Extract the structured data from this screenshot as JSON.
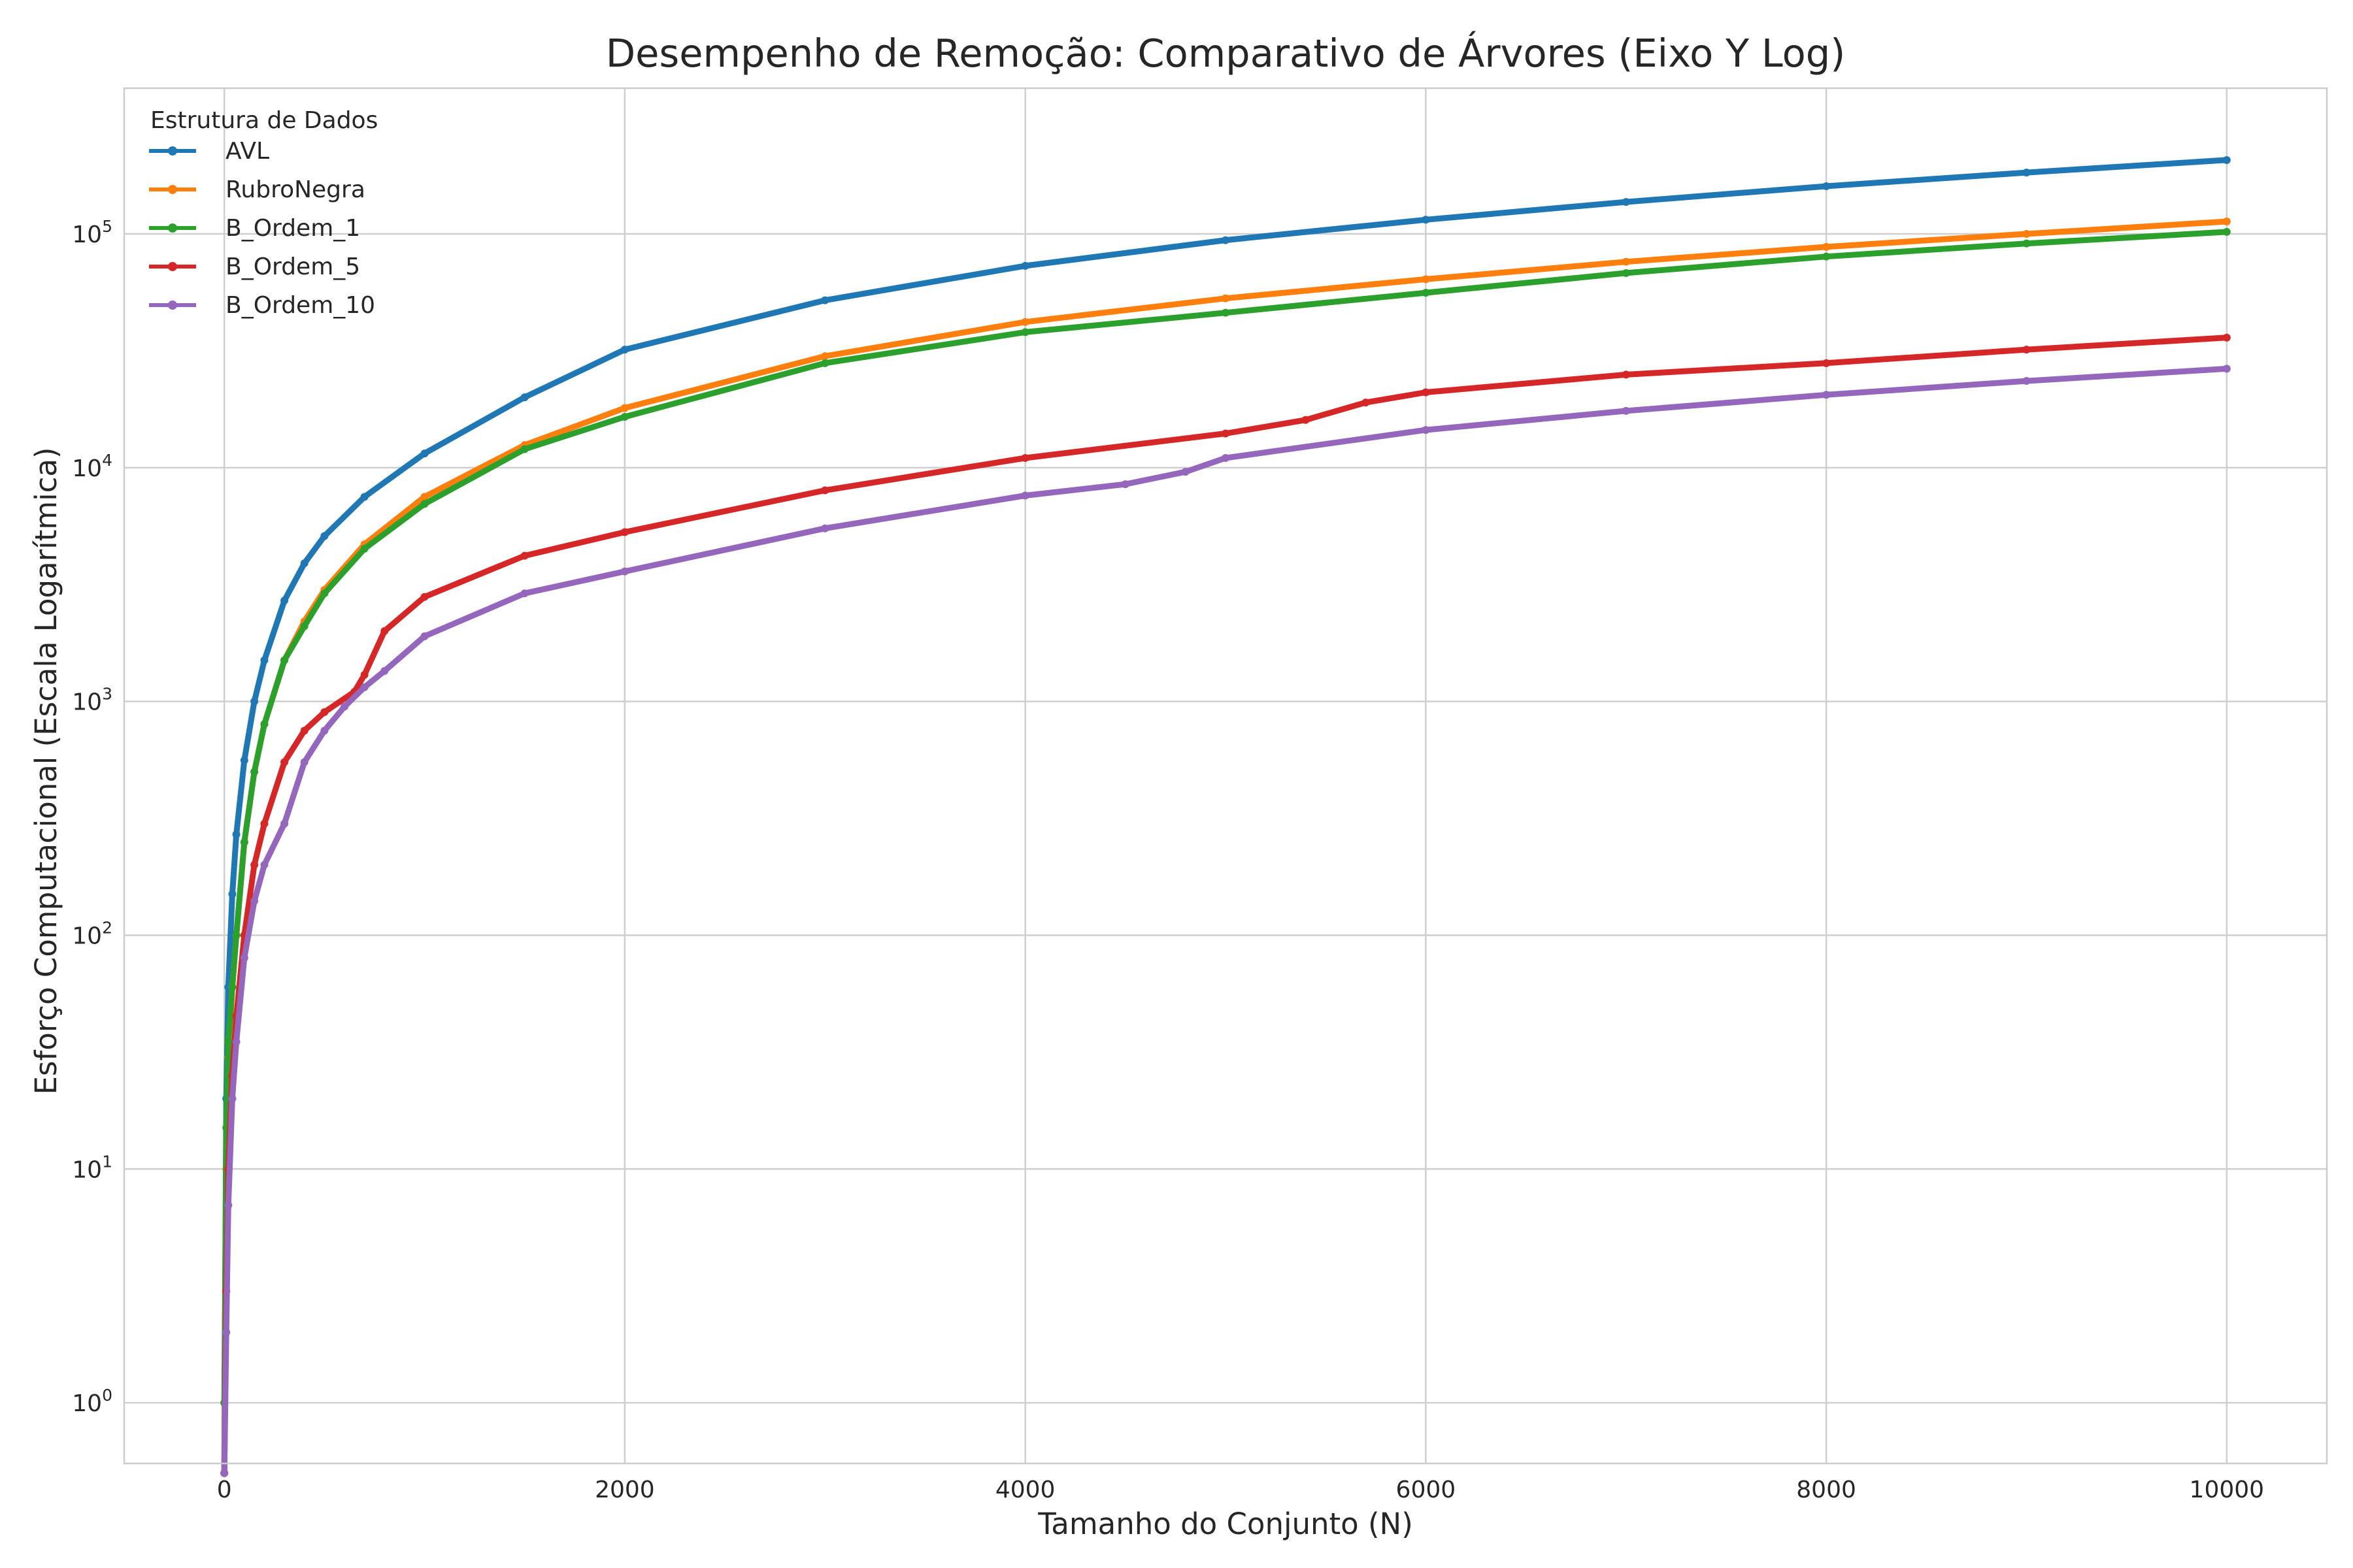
{
  "chart_data": {
    "type": "line",
    "title": "Desempenho de Remoção: Comparativo de Árvores (Eixo Y Log)",
    "xlabel": "Tamanho do Conjunto (N)",
    "ylabel": "Esforço Computacional (Escala Logarítmica)",
    "xlim": [
      -500,
      10500
    ],
    "ylim": [
      0.55,
      420000
    ],
    "yscale": "log",
    "grid": true,
    "x_ticks": [
      0,
      2000,
      4000,
      6000,
      8000,
      10000
    ],
    "x_tick_labels": [
      "0",
      "2000",
      "4000",
      "6000",
      "8000",
      "10000"
    ],
    "y_ticks": [
      1,
      10,
      100,
      1000,
      10000,
      100000
    ],
    "y_tick_labels": [
      {
        "base": "10",
        "exp": "0"
      },
      {
        "base": "10",
        "exp": "1"
      },
      {
        "base": "10",
        "exp": "2"
      },
      {
        "base": "10",
        "exp": "3"
      },
      {
        "base": "10",
        "exp": "4"
      },
      {
        "base": "10",
        "exp": "5"
      }
    ],
    "legend": {
      "title": "Estrutura de Dados",
      "placement": "upper-left"
    },
    "series": [
      {
        "name": "AVL",
        "color": "#1f77b4",
        "x": [
          0,
          10,
          20,
          40,
          60,
          100,
          150,
          200,
          300,
          400,
          500,
          700,
          1000,
          1500,
          2000,
          3000,
          4000,
          5000,
          6000,
          7000,
          8000,
          9000,
          10000
        ],
        "y": [
          0.5,
          20,
          60,
          150,
          270,
          560,
          1000,
          1500,
          2700,
          3900,
          5100,
          7500,
          11500,
          20000,
          32000,
          52000,
          73000,
          94000,
          115000,
          137000,
          160000,
          183000,
          207000
        ]
      },
      {
        "name": "RubroNegra",
        "color": "#ff7f0e",
        "x": [
          0,
          10,
          20,
          40,
          60,
          100,
          150,
          200,
          300,
          400,
          500,
          700,
          1000,
          1500,
          2000,
          3000,
          4000,
          5000,
          6000,
          7000,
          8000,
          9000,
          10000
        ],
        "y": [
          0.5,
          10,
          30,
          60,
          100,
          250,
          500,
          800,
          1500,
          2200,
          3000,
          4700,
          7500,
          12500,
          18000,
          30000,
          42000,
          53000,
          64000,
          76000,
          88000,
          100000,
          113000
        ]
      },
      {
        "name": "B_Ordem_1",
        "color": "#2ca02c",
        "x": [
          0,
          10,
          20,
          40,
          60,
          100,
          150,
          200,
          300,
          400,
          500,
          700,
          1000,
          1500,
          2000,
          3000,
          4000,
          5000,
          6000,
          7000,
          8000,
          9000,
          10000
        ],
        "y": [
          1,
          15,
          35,
          60,
          100,
          250,
          500,
          800,
          1500,
          2100,
          2900,
          4500,
          7000,
          12000,
          16500,
          28000,
          38000,
          46000,
          56000,
          68000,
          80000,
          91000,
          102000
        ]
      },
      {
        "name": "B_Ordem_5",
        "color": "#d62728",
        "x": [
          0,
          10,
          20,
          40,
          60,
          100,
          150,
          200,
          300,
          400,
          500,
          650,
          700,
          800,
          1000,
          1500,
          2000,
          3000,
          4000,
          5000,
          5400,
          5700,
          6000,
          7000,
          8000,
          9000,
          10000
        ],
        "y": [
          0.5,
          3,
          10,
          25,
          45,
          100,
          200,
          300,
          550,
          750,
          900,
          1100,
          1300,
          2000,
          2800,
          4200,
          5300,
          8000,
          11000,
          14000,
          16000,
          19000,
          21000,
          25000,
          28000,
          32000,
          36000
        ]
      },
      {
        "name": "B_Ordem_10",
        "color": "#9467bd",
        "x": [
          0,
          10,
          20,
          40,
          60,
          100,
          150,
          200,
          300,
          400,
          500,
          600,
          700,
          800,
          1000,
          1500,
          2000,
          3000,
          4000,
          4500,
          4800,
          5000,
          6000,
          7000,
          8000,
          9000,
          10000
        ],
        "y": [
          0.5,
          2,
          7,
          20,
          35,
          80,
          140,
          200,
          300,
          550,
          750,
          950,
          1150,
          1350,
          1900,
          2900,
          3600,
          5500,
          7600,
          8500,
          9600,
          11000,
          14500,
          17500,
          20500,
          23500,
          26500
        ]
      }
    ]
  }
}
